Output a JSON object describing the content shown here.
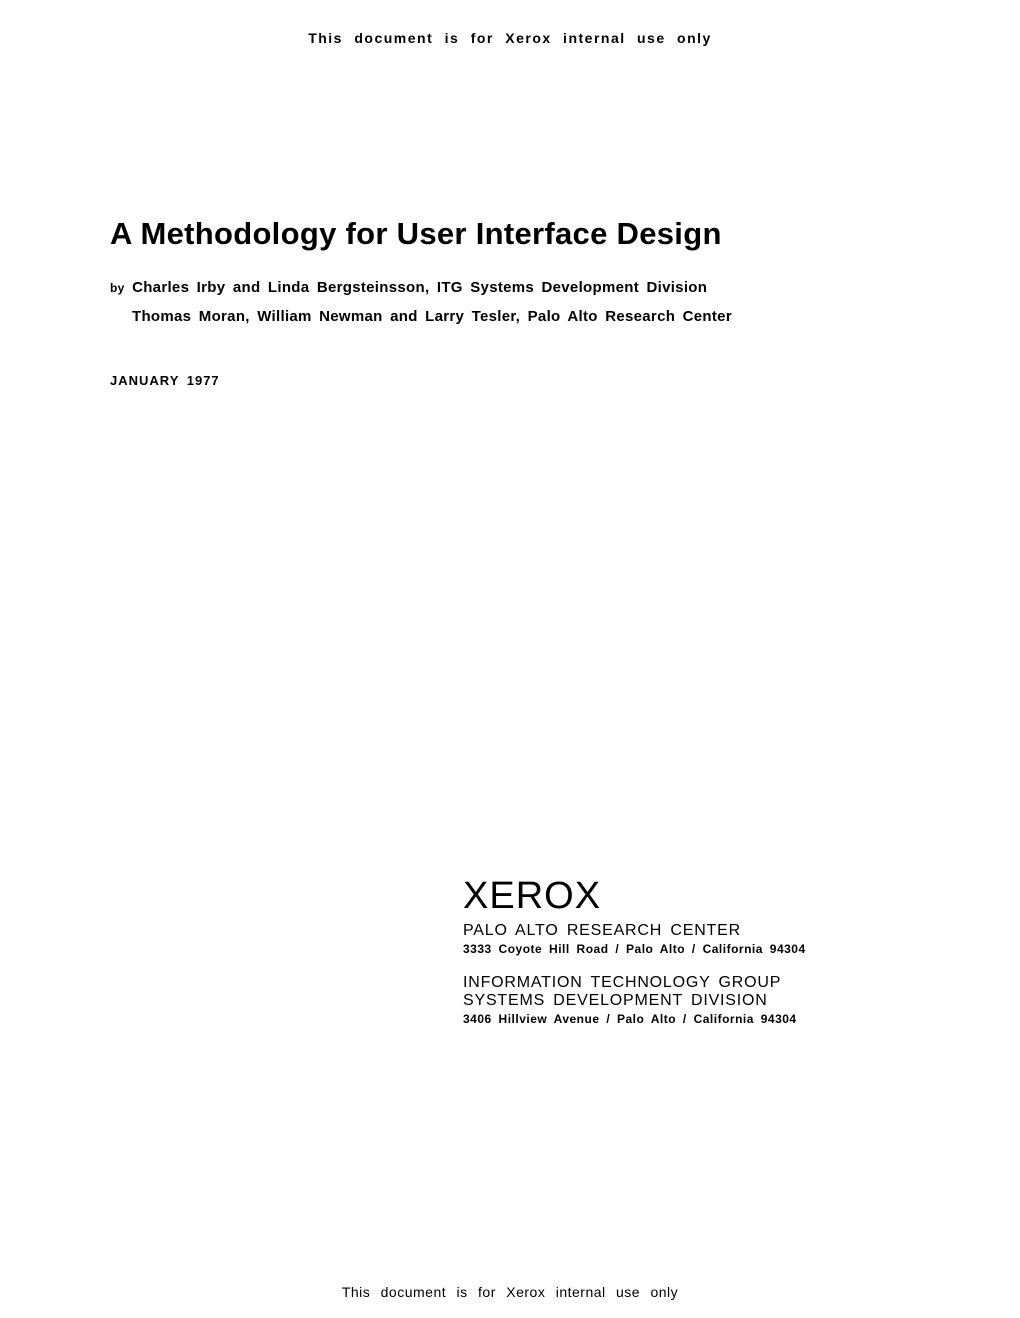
{
  "header": {
    "notice": "This document is for Xerox internal use only"
  },
  "title": "A Methodology for User Interface Design",
  "byline": {
    "prefix": "by",
    "line1": "Charles Irby and Linda Bergsteinsson, ITG Systems Development Division",
    "line2": "Thomas Moran, William Newman and Larry Tesler, Palo Alto Research Center"
  },
  "date": "JANUARY 1977",
  "org": {
    "logo": "XEROX",
    "center1": "PALO ALTO RESEARCH CENTER",
    "address1": "3333 Coyote Hill Road / Palo Alto / California 94304",
    "dept1": "INFORMATION TECHNOLOGY GROUP",
    "dept2": "SYSTEMS DEVELOPMENT DIVISION",
    "address2": "3406 Hillview Avenue / Palo Alto / California 94304"
  },
  "footer": {
    "notice": "This document is for Xerox internal use only"
  }
}
